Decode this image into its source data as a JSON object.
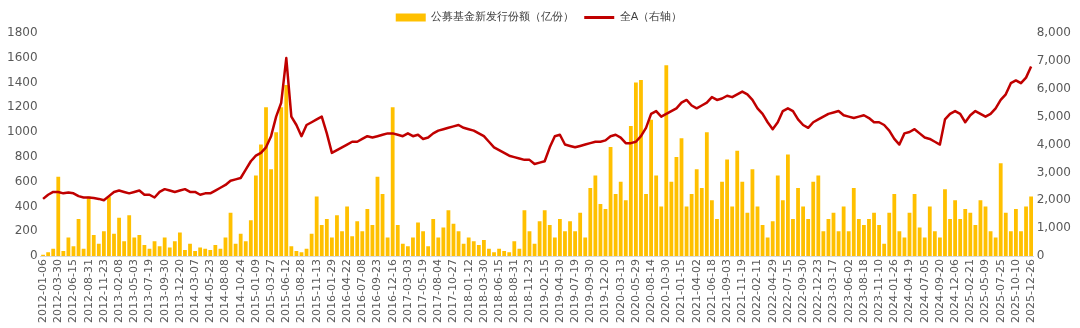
{
  "chart_data": {
    "type": "bar",
    "legend": "top",
    "grid": false,
    "categories": [
      "2012-01-06",
      null,
      null,
      "2012-03-30",
      null,
      null,
      "2012-06-15",
      null,
      null,
      "2012-08-31",
      null,
      null,
      "2012-11-23",
      null,
      null,
      "2013-02-08",
      null,
      null,
      "2013-05-03",
      null,
      null,
      "2013-07-19",
      null,
      null,
      "2013-09-30",
      null,
      null,
      "2013-12-20",
      null,
      null,
      "2014-03-07",
      null,
      null,
      "2014-05-23",
      null,
      null,
      "2014-08-08",
      null,
      null,
      "2014-10-24",
      null,
      null,
      "2015-01-09",
      null,
      null,
      "2015-03-27",
      null,
      null,
      "2015-06-12",
      null,
      null,
      "2015-08-28",
      null,
      null,
      "2015-11-13",
      null,
      null,
      "2016-01-29",
      null,
      null,
      "2016-04-22",
      null,
      null,
      "2016-07-08",
      null,
      null,
      "2016-09-23",
      null,
      null,
      "2016-12-16",
      null,
      null,
      "2017-03-03",
      null,
      null,
      "2017-05-19",
      null,
      null,
      "2017-08-04",
      null,
      null,
      "2017-10-27",
      null,
      null,
      "2018-01-12",
      null,
      null,
      "2018-03-30",
      null,
      null,
      "2018-06-15",
      null,
      null,
      "2018-08-31",
      null,
      null,
      "2018-11-23",
      null,
      null,
      "2019-02-15",
      null,
      null,
      "2019-04-30",
      null,
      null,
      "2019-07-19",
      null,
      null,
      "2019-09-30",
      null,
      null,
      "2019-12-20",
      null,
      null,
      "2020-03-13",
      null,
      null,
      "2020-05-29",
      null,
      null,
      "2020-08-14",
      null,
      null,
      "2020-10-30",
      null,
      null,
      "2021-01-15",
      null,
      null,
      "2021-04-02",
      null,
      null,
      "2021-06-18",
      null,
      null,
      "2021-09-03",
      null,
      null,
      "2021-11-19",
      null,
      null,
      "2022-02-11",
      null,
      null,
      "2022-04-29",
      null,
      null,
      "2022-07-15",
      null,
      null,
      "2022-09-30",
      null,
      null,
      "2022-12-23",
      null,
      null,
      "2023-03-17",
      null,
      null,
      "2023-06-02",
      null,
      null,
      "2023-08-18",
      null,
      null,
      "2023-11-10",
      null,
      null,
      "2024-01-26",
      null,
      null,
      "2024-04-19",
      null,
      null,
      "2024-07-05",
      null,
      null,
      "2024-09-20",
      null,
      null,
      "2024-12-06",
      null,
      null,
      "2025-02-21",
      null,
      null,
      "2025-05-09",
      null,
      null,
      "2025-07-25",
      null,
      null,
      "2025-10-10",
      null,
      null,
      "2025-12-26"
    ],
    "series": [
      {
        "name": "公募基金新发行份额（亿份）",
        "color": "#ffc000",
        "values": [
          10,
          30,
          60,
          640,
          40,
          150,
          80,
          300,
          60,
          480,
          170,
          100,
          200,
          480,
          180,
          310,
          120,
          330,
          150,
          170,
          90,
          60,
          120,
          80,
          150,
          70,
          120,
          190,
          50,
          100,
          40,
          70,
          60,
          50,
          90,
          60,
          150,
          350,
          100,
          180,
          120,
          290,
          650,
          900,
          1200,
          700,
          1000,
          1200,
          1380,
          80,
          40,
          30,
          60,
          180,
          480,
          250,
          300,
          150,
          330,
          200,
          400,
          160,
          280,
          200,
          380,
          250,
          640,
          500,
          150,
          1200,
          250,
          100,
          80,
          150,
          270,
          200,
          80,
          300,
          150,
          230,
          370,
          260,
          200,
          100,
          150,
          120,
          90,
          130,
          60,
          30,
          60,
          40,
          30,
          120,
          60,
          370,
          200,
          100,
          280,
          370,
          250,
          150,
          300,
          200,
          280,
          200,
          350,
          150,
          550,
          650,
          420,
          380,
          880,
          500,
          600,
          450,
          1050,
          1400,
          1420,
          500,
          1100,
          650,
          400,
          1540,
          600,
          800,
          950,
          400,
          500,
          700,
          550,
          1000,
          450,
          300,
          600,
          780,
          400,
          850,
          600,
          350,
          700,
          400,
          250,
          150,
          280,
          650,
          450,
          820,
          300,
          550,
          400,
          300,
          600,
          650,
          200,
          300,
          350,
          200,
          400,
          200,
          550,
          300,
          250,
          300,
          350,
          250,
          100,
          350,
          500,
          200,
          150,
          350,
          500,
          230,
          150,
          400,
          200,
          150,
          540,
          300,
          450,
          300,
          380,
          350,
          250,
          450,
          400,
          200,
          150,
          750,
          350,
          200,
          380,
          200,
          400,
          480
        ]
      },
      {
        "name": "全A（右轴）",
        "type": "line",
        "axis": "y2",
        "color": "#c00000",
        "marker": "none",
        "values": [
          2050,
          2200,
          2300,
          2300,
          2250,
          2280,
          2250,
          2150,
          2100,
          2100,
          2080,
          2050,
          2000,
          2150,
          2300,
          2350,
          2300,
          2250,
          2300,
          2350,
          2200,
          2200,
          2100,
          2300,
          2400,
          2350,
          2300,
          2350,
          2400,
          2300,
          2300,
          2200,
          2250,
          2250,
          2350,
          2450,
          2550,
          2700,
          2750,
          2800,
          3100,
          3400,
          3600,
          3700,
          3900,
          4300,
          5000,
          5500,
          7100,
          5000,
          4700,
          4300,
          4700,
          4800,
          4900,
          5000,
          4400,
          3700,
          3800,
          3900,
          4000,
          4100,
          4100,
          4200,
          4300,
          4250,
          4300,
          4350,
          4400,
          4400,
          4350,
          4300,
          4400,
          4300,
          4350,
          4200,
          4250,
          4400,
          4500,
          4550,
          4600,
          4650,
          4700,
          4600,
          4550,
          4500,
          4400,
          4300,
          4100,
          3900,
          3800,
          3700,
          3600,
          3550,
          3500,
          3450,
          3450,
          3300,
          3350,
          3400,
          3900,
          4300,
          4350,
          4000,
          3950,
          3900,
          3950,
          4000,
          4050,
          4100,
          4100,
          4150,
          4300,
          4350,
          4250,
          4050,
          4050,
          4100,
          4300,
          4600,
          5100,
          5200,
          5000,
          5100,
          5200,
          5300,
          5500,
          5600,
          5400,
          5300,
          5400,
          5500,
          5700,
          5600,
          5650,
          5750,
          5700,
          5800,
          5900,
          5800,
          5600,
          5300,
          5100,
          4800,
          4550,
          4800,
          5200,
          5300,
          5200,
          4900,
          4700,
          4600,
          4800,
          4900,
          5000,
          5100,
          5150,
          5200,
          5050,
          5000,
          4950,
          5000,
          5050,
          4950,
          4800,
          4800,
          4700,
          4500,
          4200,
          4000,
          4400,
          4450,
          4550,
          4400,
          4250,
          4200,
          4100,
          4000,
          4900,
          5100,
          5200,
          5100,
          4800,
          5050,
          5200,
          5100,
          5000,
          5100,
          5300,
          5600,
          5800,
          6200,
          6300,
          6200,
          6400,
          6800
        ]
      }
    ],
    "ylim": [
      0,
      1800
    ],
    "yticks": [
      0,
      200,
      400,
      600,
      800,
      1000,
      1200,
      1400,
      1600,
      1800
    ],
    "y2lim": [
      0,
      8000
    ],
    "y2ticks": [
      {
        "value": 0,
        "label": "0"
      },
      {
        "value": 1000,
        "label": "1,000"
      },
      {
        "value": 2000,
        "label": "2,000"
      },
      {
        "value": 3000,
        "label": "3,000"
      },
      {
        "value": 4000,
        "label": "4,000"
      },
      {
        "value": 5000,
        "label": "5,000"
      },
      {
        "value": 6000,
        "label": "6,000"
      },
      {
        "value": 7000,
        "label": "7,000"
      },
      {
        "value": 8000,
        "label": "8,000"
      }
    ]
  }
}
